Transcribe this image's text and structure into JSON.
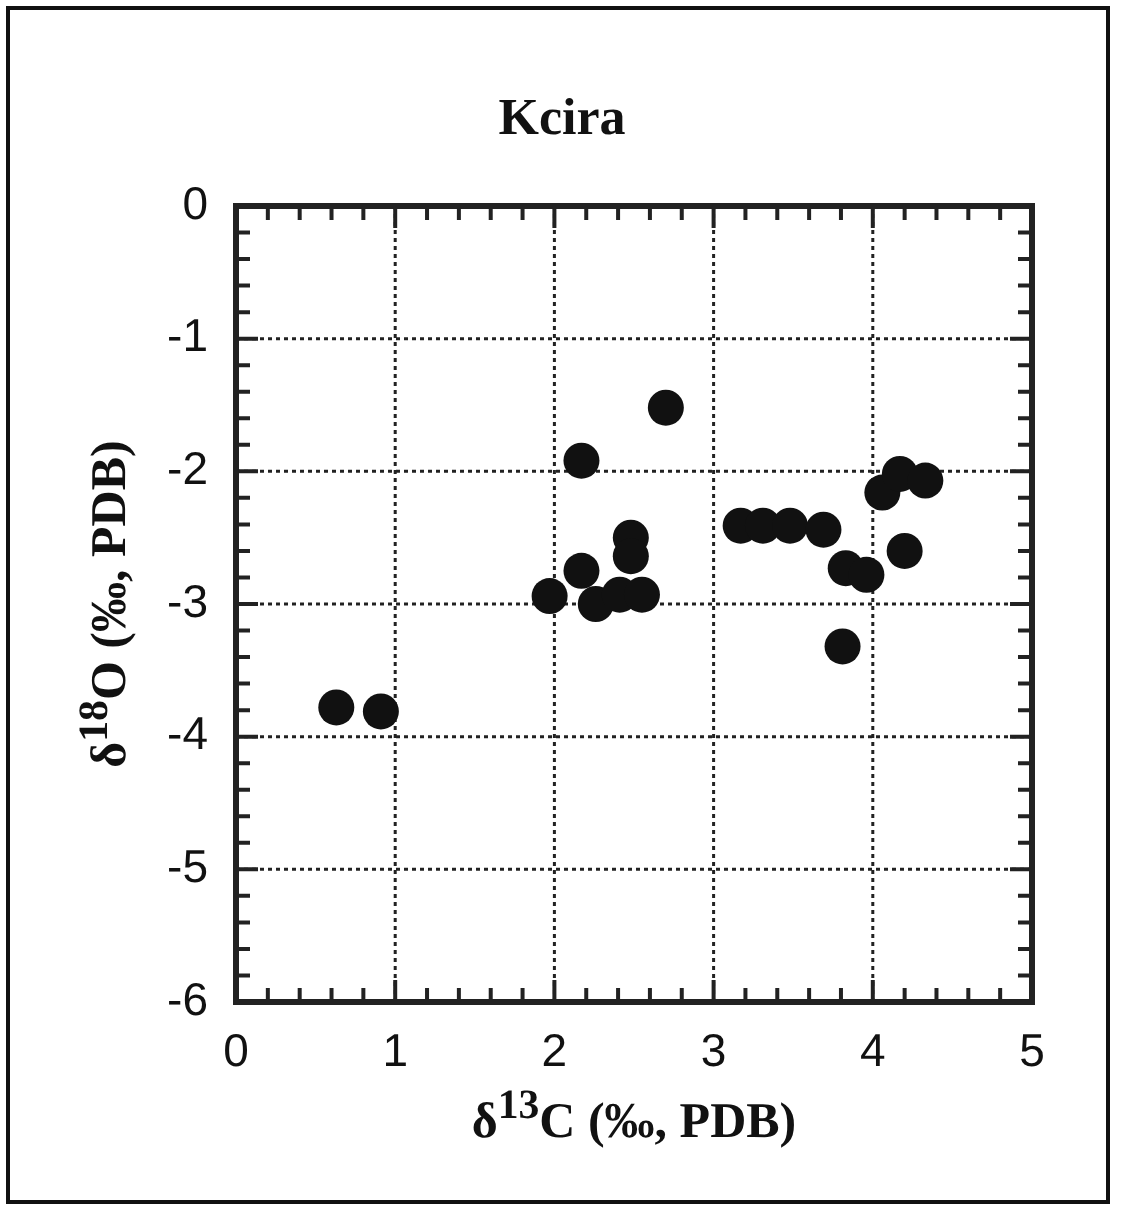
{
  "chart_data": {
    "type": "scatter",
    "title": "Kcira",
    "xlabel": "δ$^{13}$C (‰, PDB)",
    "ylabel": "δ$^{18}$O (‰, PDB)",
    "x": [
      0.63,
      0.91,
      1.97,
      2.17,
      2.17,
      2.26,
      2.41,
      2.48,
      2.48,
      2.55,
      2.7,
      3.17,
      3.31,
      3.48,
      3.69,
      3.83,
      3.96,
      3.81,
      4.06,
      4.17,
      4.33,
      4.2
    ],
    "values": [
      -3.78,
      -3.81,
      -2.94,
      -2.75,
      -1.92,
      -3.0,
      -2.93,
      -2.5,
      -2.64,
      -2.93,
      -1.52,
      -2.41,
      -2.41,
      -2.41,
      -2.44,
      -2.73,
      -2.78,
      -3.32,
      -2.16,
      -2.02,
      -2.07,
      -2.6
    ],
    "color": "#111111",
    "marker": "circle",
    "grid": true,
    "legend": false,
    "xlim": [
      0,
      5
    ],
    "ylim": [
      -6,
      0
    ],
    "xticks": [
      0,
      {
        "value": 0.2,
        "label": null
      },
      {
        "value": 0.4,
        "label": null
      },
      {
        "value": 0.6,
        "label": null
      },
      {
        "value": 0.8,
        "label": null
      },
      1,
      {
        "value": 1.2,
        "label": null
      },
      {
        "value": 1.4,
        "label": null
      },
      {
        "value": 1.6,
        "label": null
      },
      {
        "value": 1.8,
        "label": null
      },
      2,
      {
        "value": 2.2,
        "label": null
      },
      {
        "value": 2.4,
        "label": null
      },
      {
        "value": 2.6,
        "label": null
      },
      {
        "value": 2.8,
        "label": null
      },
      3,
      {
        "value": 3.2,
        "label": null
      },
      {
        "value": 3.4,
        "label": null
      },
      {
        "value": 3.6,
        "label": null
      },
      {
        "value": 3.8,
        "label": null
      },
      4,
      {
        "value": 4.2,
        "label": null
      },
      {
        "value": 4.4,
        "label": null
      },
      {
        "value": 4.6,
        "label": null
      },
      {
        "value": 4.8,
        "label": null
      },
      5
    ],
    "yticks": [
      -6,
      {
        "value": -5.8,
        "label": null
      },
      {
        "value": -5.6,
        "label": null
      },
      {
        "value": -5.4,
        "label": null
      },
      {
        "value": -5.2,
        "label": null
      },
      -5,
      {
        "value": -4.8,
        "label": null
      },
      {
        "value": -4.6,
        "label": null
      },
      {
        "value": -4.4,
        "label": null
      },
      {
        "value": -4.2,
        "label": null
      },
      -4,
      {
        "value": -3.8,
        "label": null
      },
      {
        "value": -3.6,
        "label": null
      },
      {
        "value": -3.4,
        "label": null
      },
      {
        "value": -3.2,
        "label": null
      },
      -3,
      {
        "value": -2.8,
        "label": null
      },
      {
        "value": -2.6,
        "label": null
      },
      {
        "value": -2.4,
        "label": null
      },
      {
        "value": -2.2,
        "label": null
      },
      -2,
      {
        "value": -1.8,
        "label": null
      },
      {
        "value": -1.6,
        "label": null
      },
      {
        "value": -1.4,
        "label": null
      },
      {
        "value": -1.2,
        "label": null
      },
      -1,
      {
        "value": -0.8,
        "label": null
      },
      {
        "value": -0.6,
        "label": null
      },
      {
        "value": -0.4,
        "label": null
      },
      {
        "value": -0.2,
        "label": null
      },
      0
    ]
  }
}
